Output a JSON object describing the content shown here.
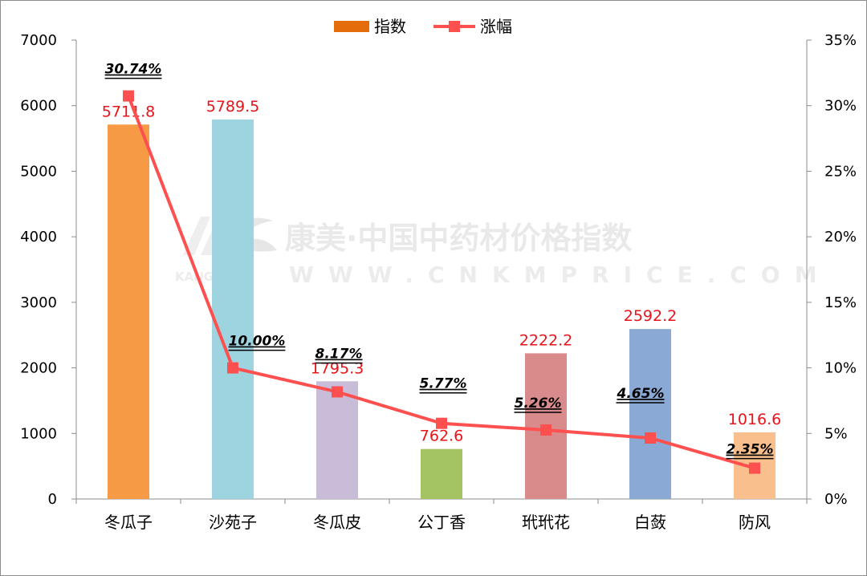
{
  "chart_data": {
    "type": "bar",
    "categories": [
      "冬瓜子",
      "沙苑子",
      "冬瓜皮",
      "公丁香",
      "玳玳花",
      "白蔹",
      "防风"
    ],
    "series": [
      {
        "name": "指数",
        "type": "bar",
        "axis": "left",
        "values": [
          5711.8,
          5789.5,
          1795.3,
          762.6,
          2222.2,
          2592.2,
          1016.6
        ],
        "data_labels": [
          "5711.8",
          "5789.5",
          "1795.3",
          "762.6",
          "2222.2",
          "2592.2",
          "1016.6"
        ],
        "colors": [
          "#f79a45",
          "#9ed3e0",
          "#c9bcd8",
          "#a4c464",
          "#d98a8a",
          "#8aa9d4",
          "#f9c08e"
        ]
      },
      {
        "name": "涨幅",
        "type": "line",
        "axis": "right",
        "values": [
          30.74,
          10.0,
          8.17,
          5.77,
          5.26,
          4.65,
          2.35
        ],
        "data_labels": [
          "30.74%",
          "10.00%",
          "8.17%",
          "5.77%",
          "5.26%",
          "4.65%",
          "2.35%"
        ],
        "color": "#ff5050"
      }
    ],
    "y_left": {
      "min": 0,
      "max": 7000,
      "ticks": [
        "0",
        "1000",
        "2000",
        "3000",
        "4000",
        "5000",
        "6000",
        "7000"
      ]
    },
    "y_right": {
      "min": 0,
      "max": 35,
      "ticks": [
        "0%",
        "5%",
        "10%",
        "15%",
        "20%",
        "25%",
        "30%",
        "35%"
      ]
    },
    "legend_position": "top-center",
    "grid": false
  },
  "legend": {
    "bar_label": "指数",
    "line_label": "涨幅",
    "bar_color": "#e46c0a",
    "line_color": "#ff5050"
  },
  "watermark": {
    "main": "康美·中国中药材价格指数",
    "sub": "WWW.CNKMPRICE.COM",
    "brand": "KANGMEI"
  }
}
